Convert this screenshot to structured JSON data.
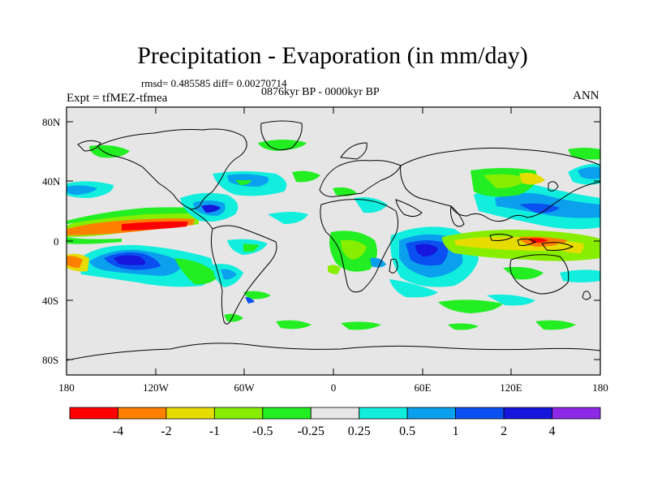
{
  "header": {
    "title": "Precipitation - Evaporation (in mm/day)",
    "stats": "rmsd= 0.485585 diff= 0.00270714",
    "period": "0876kyr BP - 0000kyr BP",
    "experiment": "Expt = tfMEZ-tfmea",
    "season": "ANN"
  },
  "axes": {
    "lat_labels": [
      "80N",
      "40N",
      "0",
      "40S",
      "80S"
    ],
    "lon_labels": [
      "180",
      "120W",
      "60W",
      "0",
      "60E",
      "120E",
      "180"
    ]
  },
  "colorbar": {
    "labels": [
      "-4",
      "-2",
      "-1",
      "-0.5",
      "-0.25",
      "0.25",
      "0.5",
      "1",
      "2",
      "4"
    ],
    "colors": [
      "#ff0000",
      "#ff8000",
      "#e6dc00",
      "#88ee00",
      "#22ee22",
      "#e6e6e6",
      "#11eedd",
      "#0aa0ee",
      "#0a50f0",
      "#1616dc",
      "#8c28e6"
    ]
  },
  "map": {
    "background": "#e6e6e6",
    "land_outline": "#000000"
  }
}
